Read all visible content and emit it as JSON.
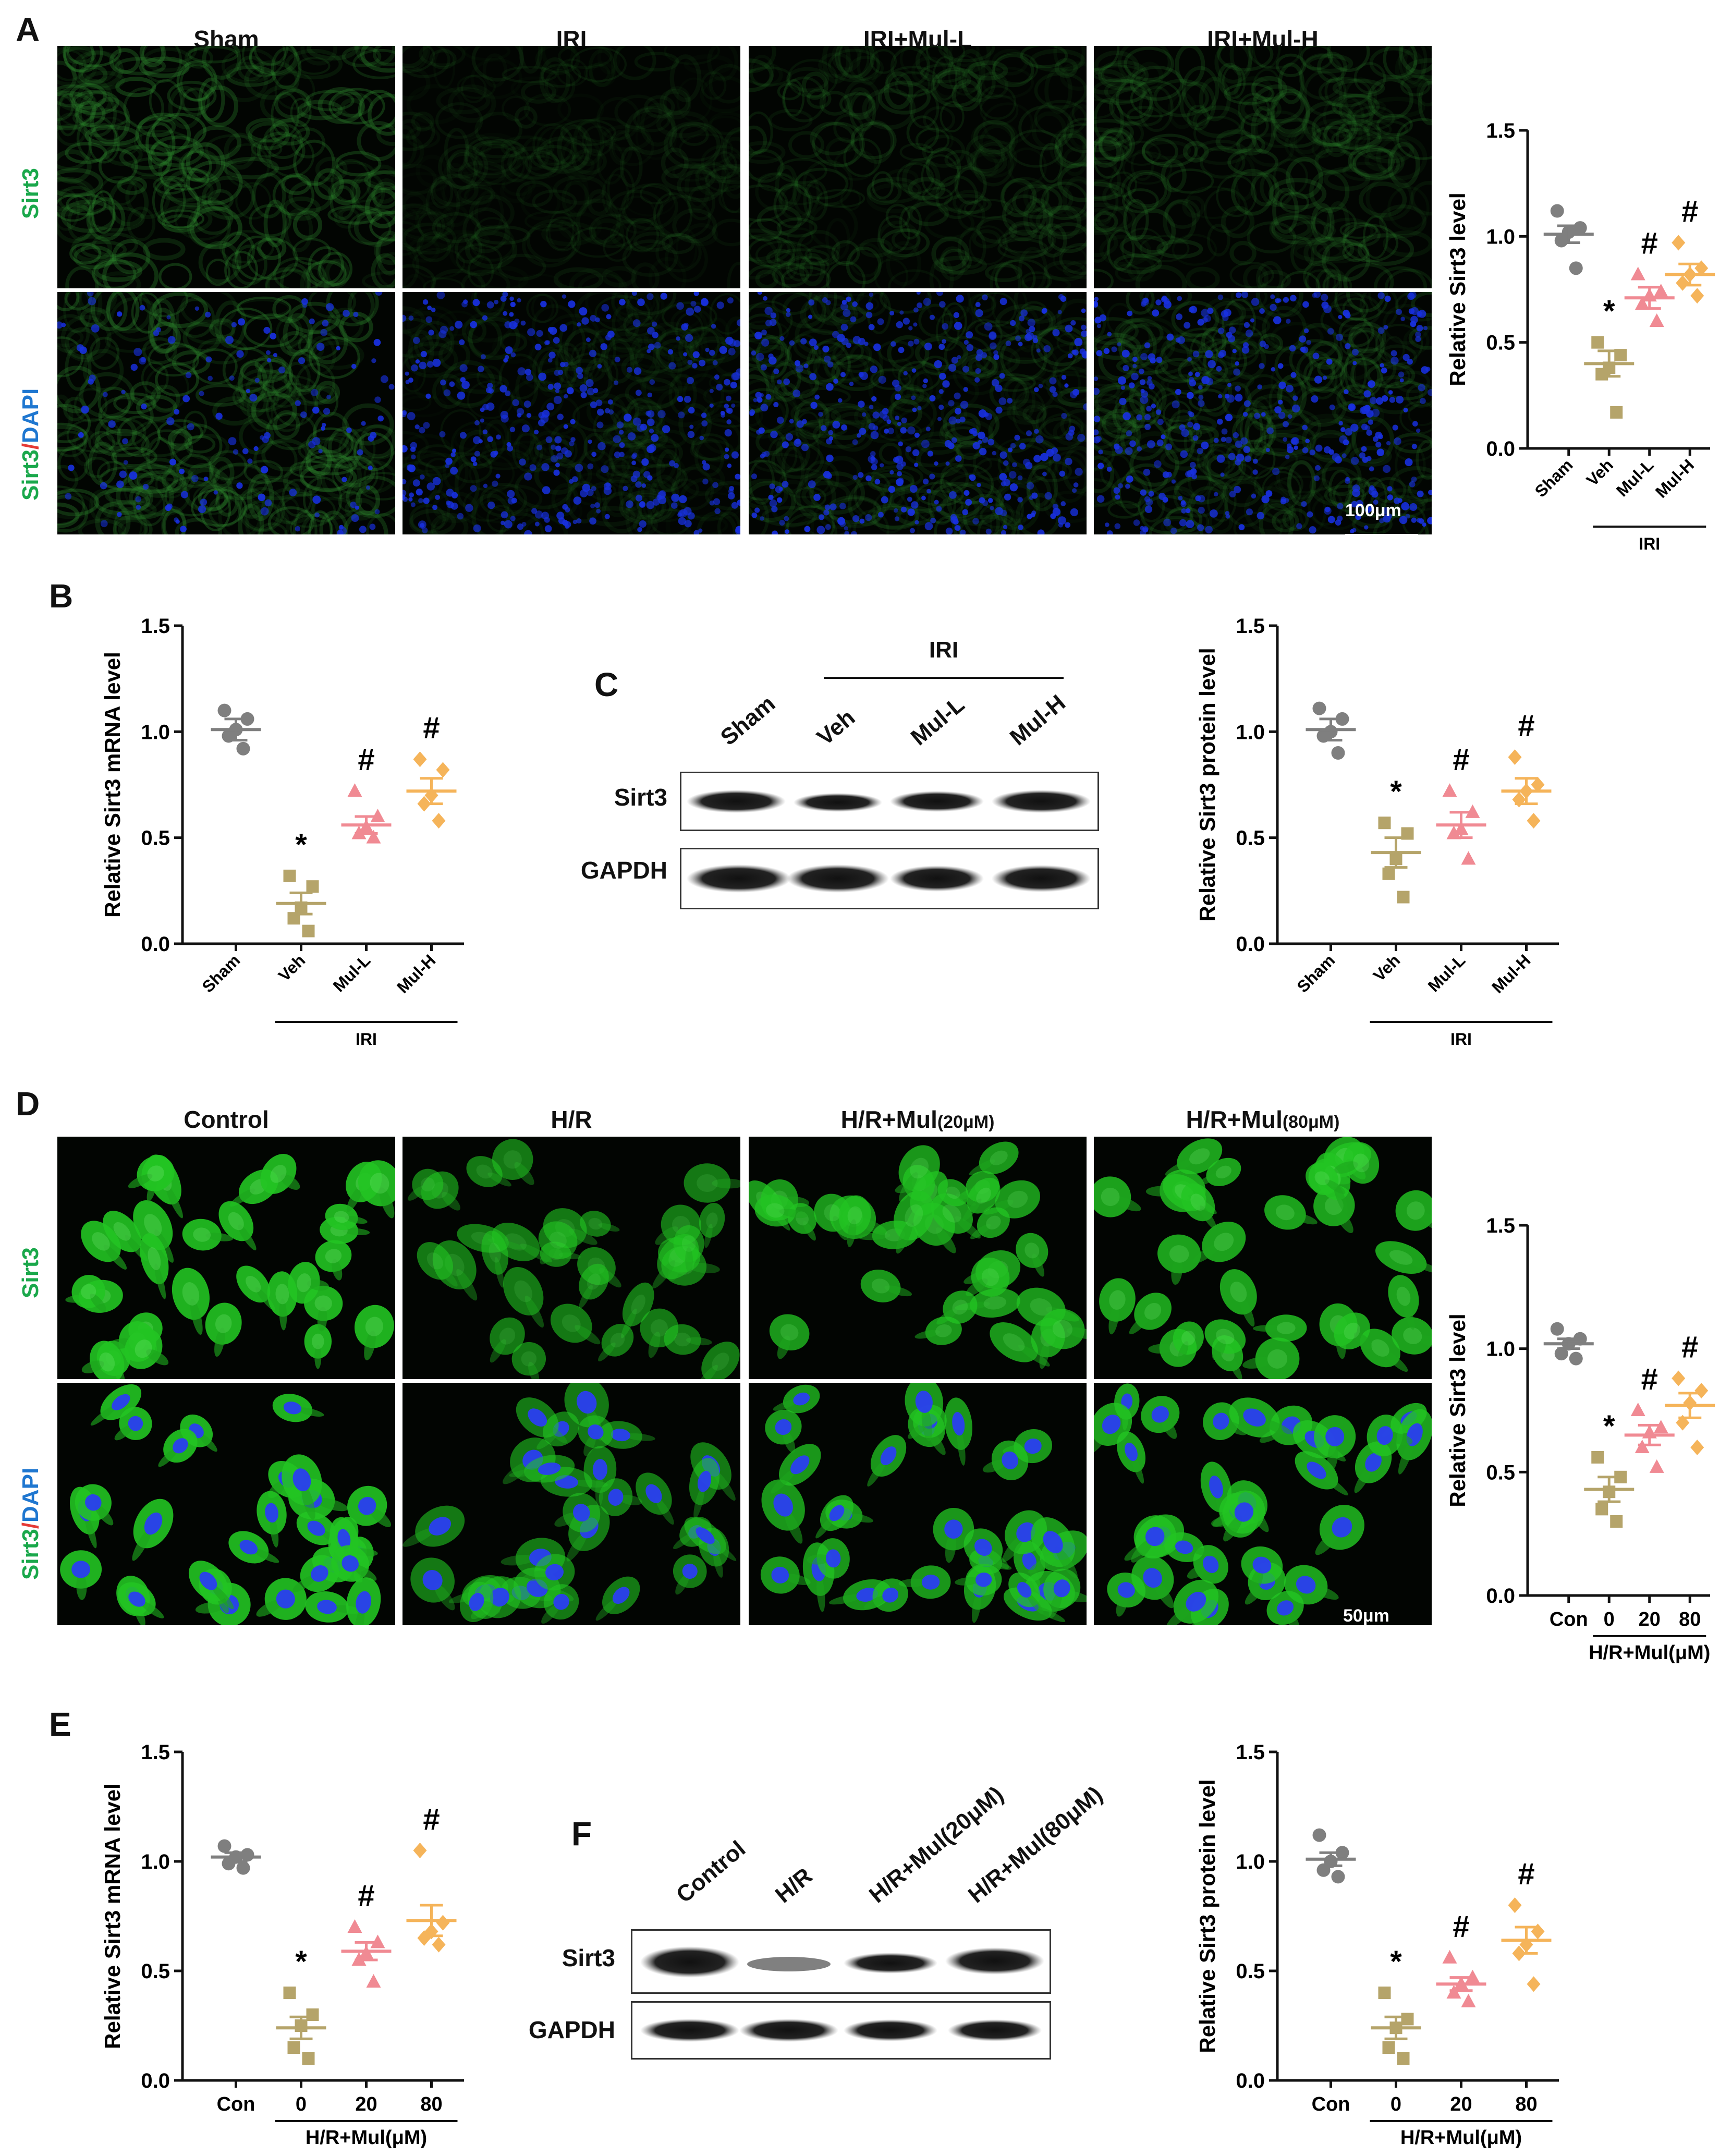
{
  "panels": {
    "A": "A",
    "B": "B",
    "C": "C",
    "D": "D",
    "E": "E",
    "F": "F"
  },
  "panelA": {
    "columns": [
      "Sham",
      "IRI",
      "IRI+Mul-L",
      "IRI+Mul-H"
    ],
    "row_label_top": "Sirt3",
    "row_label_bottom_a": "Sirt3",
    "row_label_bottom_sep": "/",
    "row_label_bottom_b": "DAPI",
    "scale": "100μm"
  },
  "panelD": {
    "columns": [
      "Control",
      "H/R",
      "H/R+Mul(20μM)",
      "H/R+Mul(80μM)"
    ],
    "col_main": [
      "Control",
      "H/R",
      "H/R+Mul",
      "H/R+Mul"
    ],
    "col_small": [
      "",
      "",
      "(20μM)",
      "(80μM)"
    ],
    "row_label_top": "Sirt3",
    "row_label_bottom_a": "Sirt3",
    "row_label_bottom_sep": "/",
    "row_label_bottom_b": "DAPI",
    "scale": "50μm"
  },
  "panelC": {
    "group_label": "IRI",
    "lanes": [
      "Sham",
      "Veh",
      "Mul-L",
      "Mul-H"
    ],
    "rows": [
      "Sirt3",
      "GAPDH"
    ]
  },
  "panelF": {
    "lanes": [
      "Control",
      "H/R",
      "H/R+Mul(20μM)",
      "H/R+Mul(80μM)"
    ],
    "rows": [
      "Sirt3",
      "GAPDH"
    ]
  },
  "colors": {
    "con": "#7f7f7f",
    "veh": "#b5a46a",
    "low": "#f08a93",
    "high": "#f5b45a",
    "fluor_green": "#2fd12f",
    "dapi_blue": "#1830e0"
  },
  "chart_data": [
    {
      "id": "A-right",
      "type": "scatter",
      "ylabel": "Relative Sirt3 level",
      "ylim": [
        0,
        1.5
      ],
      "yticks": [
        "0.0",
        "0.5",
        "1.0",
        "1.5"
      ],
      "categories": [
        "Sham",
        "Veh",
        "Mul-L",
        "Mul-H"
      ],
      "tick_style": "rotated",
      "group_label": "IRI",
      "group_span": [
        1,
        3
      ],
      "markers": [
        "circle",
        "square",
        "triangle",
        "diamond"
      ],
      "means": [
        1.01,
        0.4,
        0.71,
        0.82
      ],
      "sems": [
        0.04,
        0.06,
        0.05,
        0.05
      ],
      "points": [
        [
          1.12,
          1.04,
          1.02,
          0.98,
          0.85
        ],
        [
          0.5,
          0.44,
          0.38,
          0.35,
          0.17
        ],
        [
          0.82,
          0.74,
          0.72,
          0.68,
          0.6
        ],
        [
          0.97,
          0.85,
          0.82,
          0.78,
          0.72
        ]
      ],
      "annotations": [
        "",
        "*",
        "#",
        "#"
      ]
    },
    {
      "id": "B",
      "type": "scatter",
      "ylabel": "Relative Sirt3 mRNA level",
      "ylim": [
        0,
        1.5
      ],
      "yticks": [
        "0.0",
        "0.5",
        "1.0",
        "1.5"
      ],
      "categories": [
        "Sham",
        "Veh",
        "Mul-L",
        "Mul-H"
      ],
      "tick_style": "rotated",
      "group_label": "IRI",
      "group_span": [
        1,
        3
      ],
      "markers": [
        "circle",
        "square",
        "triangle",
        "diamond"
      ],
      "means": [
        1.01,
        0.19,
        0.56,
        0.72
      ],
      "sems": [
        0.05,
        0.05,
        0.04,
        0.06
      ],
      "points": [
        [
          1.1,
          1.06,
          1.01,
          0.98,
          0.92
        ],
        [
          0.32,
          0.27,
          0.17,
          0.12,
          0.06
        ],
        [
          0.72,
          0.6,
          0.55,
          0.52,
          0.5
        ],
        [
          0.87,
          0.82,
          0.7,
          0.66,
          0.58
        ]
      ],
      "annotations": [
        "",
        "*",
        "#",
        "#"
      ]
    },
    {
      "id": "C-right",
      "type": "scatter",
      "ylabel": "Relative Sirt3 protein level",
      "ylim": [
        0,
        1.5
      ],
      "yticks": [
        "0.0",
        "0.5",
        "1.0",
        "1.5"
      ],
      "categories": [
        "Sham",
        "Veh",
        "Mul-L",
        "Mul-H"
      ],
      "tick_style": "rotated",
      "group_label": "IRI",
      "group_span": [
        1,
        3
      ],
      "markers": [
        "circle",
        "square",
        "triangle",
        "diamond"
      ],
      "means": [
        1.01,
        0.43,
        0.56,
        0.72
      ],
      "sems": [
        0.05,
        0.07,
        0.06,
        0.06
      ],
      "points": [
        [
          1.11,
          1.06,
          1.0,
          0.98,
          0.9
        ],
        [
          0.57,
          0.52,
          0.4,
          0.33,
          0.22
        ],
        [
          0.72,
          0.62,
          0.54,
          0.52,
          0.4
        ],
        [
          0.88,
          0.75,
          0.72,
          0.68,
          0.58
        ]
      ],
      "annotations": [
        "",
        "*",
        "#",
        "#"
      ]
    },
    {
      "id": "D-right",
      "type": "scatter",
      "ylabel": "Relative Sirt3 level",
      "ylim": [
        0,
        1.5
      ],
      "yticks": [
        "0.0",
        "0.5",
        "1.0",
        "1.5"
      ],
      "categories": [
        "Con",
        "0",
        "20",
        "80"
      ],
      "tick_style": "flat",
      "group_label": "H/R+Mul(μM)",
      "group_span": [
        1,
        3
      ],
      "markers": [
        "circle",
        "square",
        "triangle",
        "diamond"
      ],
      "means": [
        1.02,
        0.43,
        0.65,
        0.77
      ],
      "sems": [
        0.02,
        0.05,
        0.04,
        0.05
      ],
      "points": [
        [
          1.08,
          1.04,
          1.02,
          0.98,
          0.96
        ],
        [
          0.56,
          0.48,
          0.42,
          0.35,
          0.3
        ],
        [
          0.75,
          0.68,
          0.66,
          0.6,
          0.52
        ],
        [
          0.88,
          0.83,
          0.78,
          0.7,
          0.6
        ]
      ],
      "annotations": [
        "",
        "*",
        "#",
        "#"
      ]
    },
    {
      "id": "E",
      "type": "scatter",
      "ylabel": "Relative Sirt3 mRNA level",
      "ylim": [
        0,
        1.5
      ],
      "yticks": [
        "0.0",
        "0.5",
        "1.0",
        "1.5"
      ],
      "categories": [
        "Con",
        "0",
        "20",
        "80"
      ],
      "tick_style": "flat",
      "group_label": "H/R+Mul(μM)",
      "group_span": [
        1,
        3
      ],
      "markers": [
        "circle",
        "square",
        "triangle",
        "diamond"
      ],
      "means": [
        1.02,
        0.24,
        0.59,
        0.73
      ],
      "sems": [
        0.02,
        0.05,
        0.04,
        0.07
      ],
      "points": [
        [
          1.07,
          1.03,
          1.02,
          0.99,
          0.97
        ],
        [
          0.4,
          0.3,
          0.25,
          0.15,
          0.1
        ],
        [
          0.7,
          0.63,
          0.58,
          0.55,
          0.45
        ],
        [
          1.05,
          0.72,
          0.68,
          0.65,
          0.62
        ]
      ],
      "annotations": [
        "",
        "*",
        "#",
        "#"
      ]
    },
    {
      "id": "F-right",
      "type": "scatter",
      "ylabel": "Relative Sirt3 protein level",
      "ylim": [
        0,
        1.5
      ],
      "yticks": [
        "0.0",
        "0.5",
        "1.0",
        "1.5"
      ],
      "categories": [
        "Con",
        "0",
        "20",
        "80"
      ],
      "tick_style": "flat",
      "group_label": "H/R+Mul(μM)",
      "group_span": [
        1,
        3
      ],
      "markers": [
        "circle",
        "square",
        "triangle",
        "diamond"
      ],
      "means": [
        1.01,
        0.24,
        0.44,
        0.64
      ],
      "sems": [
        0.03,
        0.05,
        0.03,
        0.06
      ],
      "points": [
        [
          1.12,
          1.04,
          1.0,
          0.96,
          0.93
        ],
        [
          0.4,
          0.28,
          0.24,
          0.15,
          0.1
        ],
        [
          0.56,
          0.47,
          0.44,
          0.4,
          0.36
        ],
        [
          0.8,
          0.68,
          0.62,
          0.58,
          0.44
        ]
      ],
      "annotations": [
        "",
        "*",
        "#",
        "#"
      ]
    }
  ]
}
